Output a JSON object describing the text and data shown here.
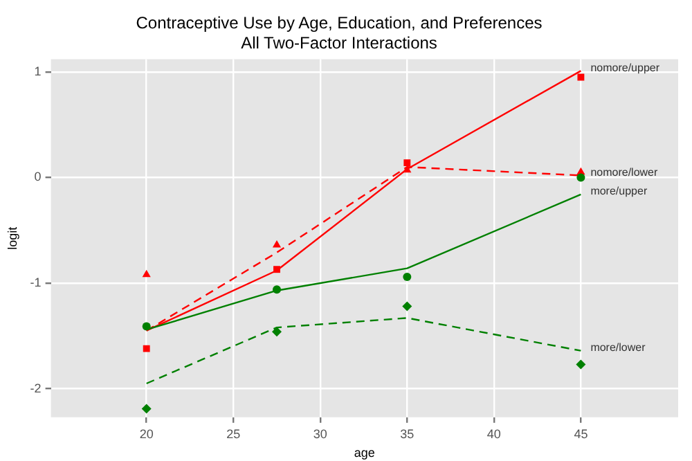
{
  "chart_data": {
    "type": "line",
    "title": "Contraceptive Use by Age, Education, and Preferences",
    "subtitle": "All Two-Factor Interactions",
    "xlabel": "age",
    "ylabel": "logit",
    "xlim": [
      14.5,
      50.6
    ],
    "xticks": [
      20,
      25,
      30,
      35,
      40,
      45
    ],
    "ylim": [
      -2.27,
      1.12
    ],
    "yticks": [
      -2,
      -1,
      0,
      1
    ],
    "grid": true,
    "legend": false,
    "series": [
      {
        "name": "nomore/upper",
        "type": "line",
        "color": "#ff0000",
        "line_style": "solid",
        "marker": "none",
        "x": [
          20,
          27.5,
          35,
          45
        ],
        "values": [
          -1.45,
          -0.88,
          0.08,
          1.01
        ]
      },
      {
        "name": "nomore/lower",
        "type": "line",
        "color": "#ff0000",
        "line_style": "dashed",
        "marker": "none",
        "x": [
          20,
          27.5,
          35,
          45
        ],
        "values": [
          -1.45,
          -0.71,
          0.1,
          0.02
        ]
      },
      {
        "name": "more/upper",
        "type": "line",
        "color": "#008000",
        "line_style": "solid",
        "marker": "none",
        "x": [
          20,
          27.5,
          35,
          45
        ],
        "values": [
          -1.44,
          -1.07,
          -0.86,
          -0.16
        ]
      },
      {
        "name": "more/lower",
        "type": "line",
        "color": "#008000",
        "line_style": "dashed",
        "marker": "none",
        "x": [
          20,
          27.5,
          35,
          45
        ],
        "values": [
          -1.95,
          -1.42,
          -1.33,
          -1.64
        ]
      },
      {
        "type": "scatter",
        "color": "#ff0000",
        "marker": "square",
        "x": [
          20,
          27.5,
          35,
          45
        ],
        "values": [
          -1.62,
          -0.87,
          0.14,
          0.95
        ]
      },
      {
        "type": "scatter",
        "color": "#ff0000",
        "marker": "triangle",
        "x": [
          20,
          27.5,
          35,
          45
        ],
        "values": [
          -0.92,
          -0.64,
          0.07,
          0.05
        ]
      },
      {
        "type": "scatter",
        "color": "#008000",
        "marker": "circle",
        "x": [
          20,
          27.5,
          35,
          45
        ],
        "values": [
          -1.41,
          -1.06,
          -0.94,
          0.0
        ]
      },
      {
        "type": "scatter",
        "color": "#008000",
        "marker": "diamond",
        "x": [
          20,
          27.5,
          35,
          45
        ],
        "values": [
          -2.19,
          -1.46,
          -1.22,
          -1.77
        ]
      }
    ]
  }
}
